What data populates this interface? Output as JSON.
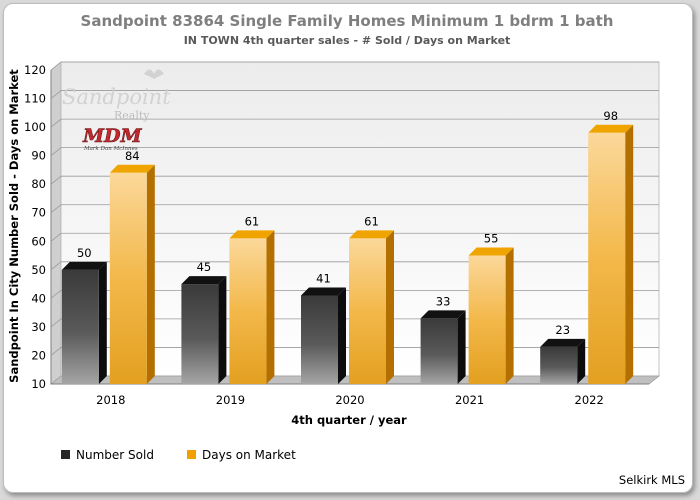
{
  "chart_data": {
    "type": "bar",
    "title": "Sandpoint 83864 Single Family Homes Minimum 1 bdrm 1 bath",
    "subtitle": "IN TOWN 4th quarter sales - # Sold / Days on Market",
    "xlabel": "4th quarter / year",
    "ylabel": "Sandpoint In City Number Sold - Days on Market",
    "categories": [
      "2018",
      "2019",
      "2020",
      "2021",
      "2022"
    ],
    "series": [
      {
        "name": "Number Sold",
        "values": [
          50,
          45,
          41,
          33,
          23
        ],
        "color": "#262626"
      },
      {
        "name": "Days on Market",
        "values": [
          84,
          61,
          61,
          55,
          98
        ],
        "color": "#f2a000"
      }
    ],
    "ylim": [
      10,
      120
    ],
    "yticks": [
      "120",
      "110",
      "100",
      "90",
      "80",
      "70",
      "60",
      "50",
      "40",
      "30",
      "20",
      "10"
    ],
    "grid": true,
    "legend_position": "bottom-left",
    "source": "Selkirk MLS"
  },
  "watermark": {
    "brand": "Sandpoint",
    "brand_sub": "Realty",
    "monogram": "MDM",
    "signature": "Mark Dan McInnes"
  }
}
